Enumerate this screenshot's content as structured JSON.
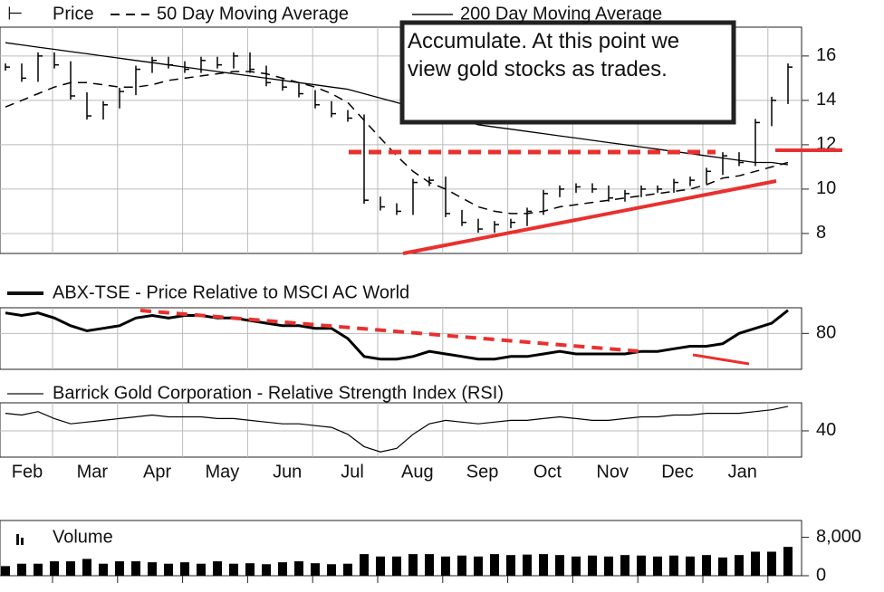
{
  "chart_data": {
    "type": "stock",
    "months": [
      "Feb",
      "Mar",
      "Apr",
      "May",
      "Jun",
      "Jul",
      "Aug",
      "Sep",
      "Oct",
      "Nov",
      "Dec",
      "Jan"
    ],
    "annotation": "Accumulate. At this point we view gold stocks as trades.",
    "price_panel": {
      "ylim": [
        7.1,
        17.3
      ],
      "yticks": [
        8,
        10,
        12,
        14,
        16
      ],
      "series": [
        {
          "name": "Price",
          "color": "#000000",
          "values": [
            15.5,
            15,
            16,
            15.6,
            14.2,
            13.3,
            13.8,
            14.4,
            15.4,
            15.8,
            15.6,
            15.4,
            15.8,
            15.6,
            16.0,
            15.4,
            14.8,
            14.6,
            14.3,
            13.8,
            13.4,
            13.2,
            9.5,
            9.2,
            9.0,
            10.3,
            10.4,
            8.9,
            8.5,
            8.2,
            8.4,
            8.5,
            9.0,
            9.8,
            10.0,
            10.1,
            10.0,
            9.6,
            9.8,
            10.0,
            10.0,
            10.3,
            10.4,
            10.8,
            11.5,
            11.2,
            13.0,
            14.0,
            15.5
          ]
        },
        {
          "name": "50 Day Moving Average",
          "color": "#000000",
          "values": [
            13.7,
            14.0,
            14.3,
            14.6,
            14.8,
            14.8,
            14.7,
            14.6,
            14.6,
            14.7,
            14.9,
            15.0,
            15.1,
            15.2,
            15.3,
            15.3,
            15.2,
            15.0,
            14.8,
            14.6,
            14.3,
            13.9,
            13.1,
            12.3,
            11.5,
            10.8,
            10.3,
            10.0,
            9.6,
            9.2,
            9.0,
            8.9,
            8.9,
            9.0,
            9.2,
            9.3,
            9.4,
            9.5,
            9.6,
            9.7,
            9.8,
            9.9,
            10.0,
            10.2,
            10.5,
            10.6,
            10.8,
            11.0,
            11.2
          ]
        },
        {
          "name": "200 Day Moving Average",
          "color": "#000000",
          "values": [
            16.6,
            16.5,
            16.4,
            16.3,
            16.2,
            16.1,
            16.0,
            15.9,
            15.8,
            15.7,
            15.6,
            15.5,
            15.4,
            15.3,
            15.2,
            15.1,
            15.0,
            14.9,
            14.8,
            14.7,
            14.6,
            14.5,
            14.3,
            14.1,
            13.9,
            13.7,
            13.5,
            13.3,
            13.1,
            12.9,
            12.8,
            12.7,
            12.6,
            12.5,
            12.4,
            12.3,
            12.2,
            12.1,
            12.0,
            11.9,
            11.8,
            11.7,
            11.6,
            11.5,
            11.4,
            11.3,
            11.2,
            11.2,
            11.1
          ]
        }
      ]
    },
    "relative_panel": {
      "ylim": [
        66,
        90
      ],
      "yticks": [
        80
      ],
      "series": [
        {
          "name": "ABX-TSE - Price Relative to MSCI AC World",
          "color": "#000000",
          "values": [
            88,
            87,
            88,
            86,
            83,
            81,
            82,
            83,
            86,
            87,
            86,
            87,
            87,
            86,
            86,
            85,
            84,
            83,
            83,
            82,
            82,
            78,
            71,
            70,
            70,
            71,
            73,
            72,
            71,
            70,
            70,
            71,
            71,
            72,
            73,
            72,
            72,
            72,
            72,
            73,
            73,
            74,
            75,
            75,
            76,
            80,
            82,
            84,
            89
          ]
        }
      ]
    },
    "rsi_panel": {
      "ylim": [
        25,
        56
      ],
      "yticks": [
        40
      ],
      "series": [
        {
          "name": "Barrick Gold Corporation - Relative Strength Index (RSI)",
          "color": "#000000",
          "values": [
            50,
            49,
            51,
            47,
            44,
            45,
            46,
            47,
            48,
            49,
            48,
            48,
            48,
            47,
            47,
            46,
            45,
            44,
            44,
            43,
            42,
            38,
            31,
            28,
            30,
            38,
            44,
            46,
            45,
            44,
            45,
            46,
            46,
            47,
            48,
            47,
            46,
            46,
            47,
            48,
            48,
            49,
            49,
            50,
            50,
            50,
            51,
            52,
            54
          ]
        }
      ]
    },
    "volume_panel": {
      "ylim": [
        0,
        11500
      ],
      "yticks": [
        {
          "value": 8000,
          "label": "8,000"
        },
        0
      ],
      "series": [
        {
          "name": "Volume",
          "color": "#000000",
          "values": [
            2000,
            2500,
            2500,
            3000,
            3000,
            3500,
            2500,
            3000,
            3000,
            2800,
            2500,
            2800,
            2500,
            3000,
            2500,
            2600,
            2400,
            2800,
            3000,
            2600,
            2400,
            2500,
            4500,
            4000,
            4000,
            4500,
            4500,
            4000,
            4200,
            4000,
            4500,
            4300,
            4400,
            4500,
            4300,
            4000,
            4200,
            4000,
            4300,
            4200,
            4000,
            4200,
            4000,
            4300,
            3800,
            4300,
            5000,
            5000,
            6000
          ]
        }
      ]
    }
  }
}
